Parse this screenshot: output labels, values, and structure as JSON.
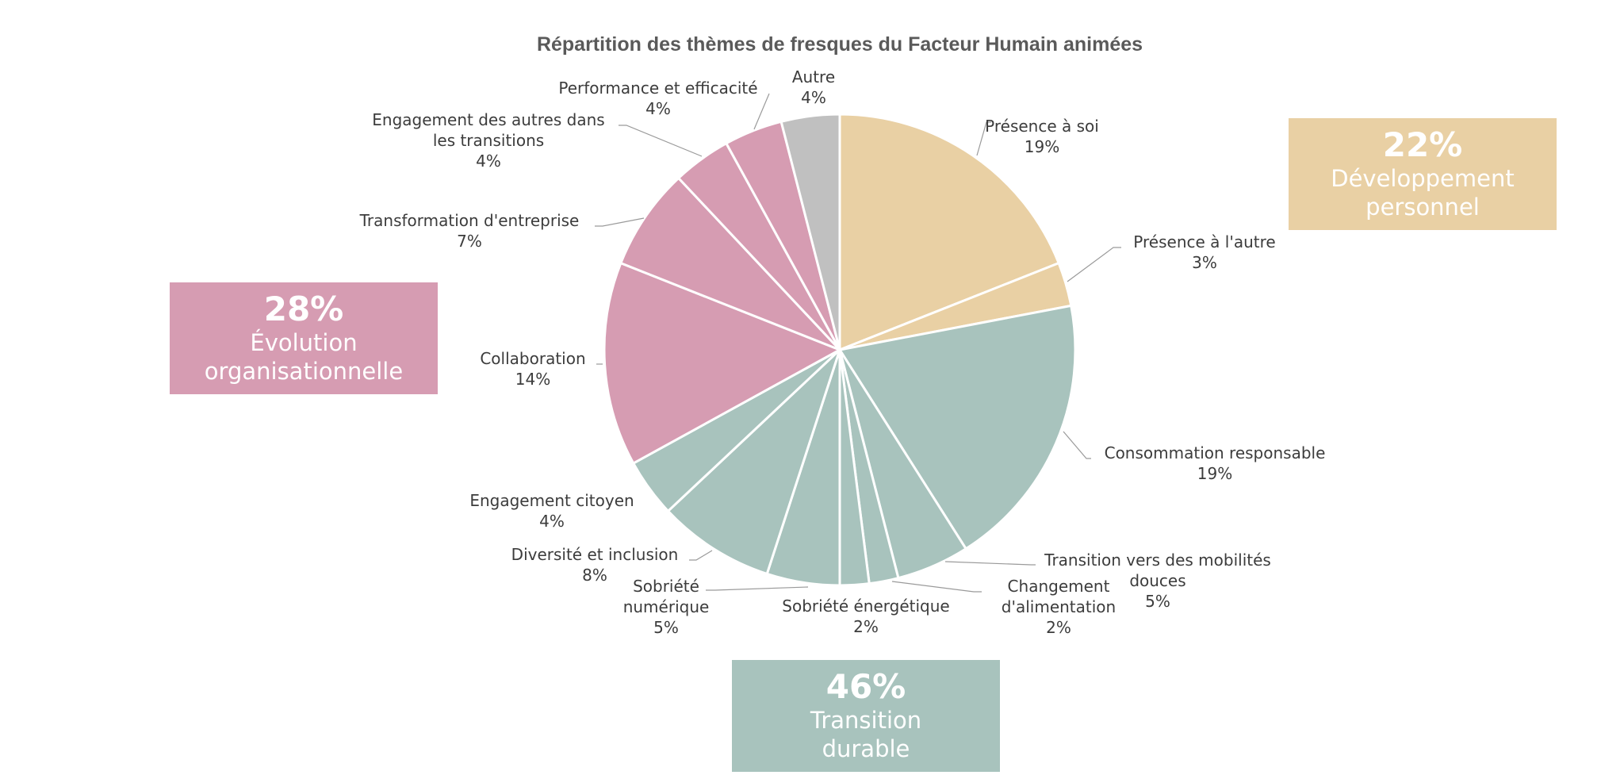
{
  "chart_data": {
    "type": "pie",
    "title": "Répartition des thèmes de fresques du Facteur Humain animées",
    "start_angle_deg": 0,
    "direction": "clockwise",
    "slices": [
      {
        "label": "Présence à soi",
        "value": 19,
        "value_label": "19%",
        "group": "developpement"
      },
      {
        "label": "Présence à l'autre",
        "value": 3,
        "value_label": "3%",
        "group": "developpement"
      },
      {
        "label": "Consommation responsable",
        "value": 19,
        "value_label": "19%",
        "group": "transition"
      },
      {
        "label": "Transition vers des mobilités douces",
        "value": 5,
        "value_label": "5%",
        "group": "transition"
      },
      {
        "label": "Changement d'alimentation",
        "value": 2,
        "value_label": "2%",
        "group": "transition"
      },
      {
        "label": "Sobriété énergétique",
        "value": 2,
        "value_label": "2%",
        "group": "transition"
      },
      {
        "label": "Sobriété numérique",
        "value": 5,
        "value_label": "5%",
        "group": "transition"
      },
      {
        "label": "Diversité et inclusion",
        "value": 8,
        "value_label": "8%",
        "group": "transition"
      },
      {
        "label": "Engagement citoyen",
        "value": 4,
        "value_label": "4%",
        "group": "transition"
      },
      {
        "label": "Collaboration",
        "value": 14,
        "value_label": "14%",
        "group": "evolution"
      },
      {
        "label": "Transformation d'entreprise",
        "value": 7,
        "value_label": "7%",
        "group": "evolution"
      },
      {
        "label": "Engagement des autres dans les transitions",
        "value": 4,
        "value_label": "4%",
        "group": "evolution"
      },
      {
        "label": "Performance et efficacité",
        "value": 4,
        "value_label": "4%",
        "group": "evolution"
      },
      {
        "label": "Autre",
        "value": 4,
        "value_label": "4%",
        "group": "autre"
      }
    ],
    "groups": {
      "developpement": {
        "color": "#e9d0a4",
        "percent": "22%",
        "name": "Développement\npersonnel"
      },
      "evolution": {
        "color": "#d69cb2",
        "percent": "28%",
        "name": "Évolution\norganisationnelle"
      },
      "transition": {
        "color": "#a8c3bd",
        "percent": "46%",
        "name": "Transition\ndurable"
      },
      "autre": {
        "color": "#c0c0c0"
      }
    }
  }
}
